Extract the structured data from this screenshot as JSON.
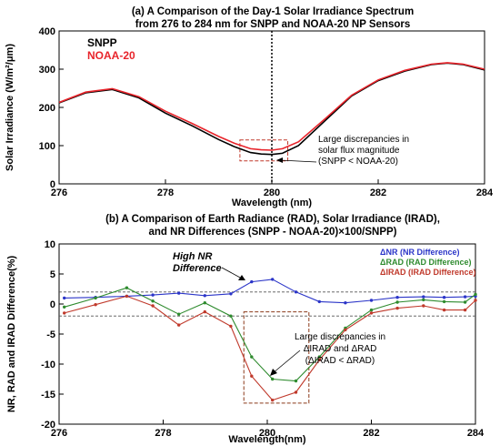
{
  "chart_data": [
    {
      "type": "line",
      "title_line1": "(a) A Comparison of the Day-1 Solar Irradiance Spectrum",
      "title_line2": "from 276 to 284 nm for SNPP and NOAA-20 NP Sensors",
      "xlabel": "Wavelength (nm)",
      "ylabel": "Solar Irradiance (W/m²/μm)",
      "xlim": [
        276,
        284
      ],
      "ylim": [
        0,
        400
      ],
      "xticks": [
        276,
        278,
        280,
        282,
        284
      ],
      "yticks": [
        0,
        100,
        200,
        300,
        400
      ],
      "legend_position": "top-left",
      "reference_line_x": 280,
      "annotation": {
        "lines": [
          "Large discrepancies in",
          "solar flux magnitude",
          "(SNPP < NOAA-20)"
        ],
        "box": {
          "x": [
            279.4,
            280.3
          ],
          "y": [
            60,
            115
          ]
        }
      },
      "series": [
        {
          "name": "SNPP",
          "color": "#000000",
          "x": [
            276,
            276.5,
            277,
            277.5,
            278,
            278.5,
            279,
            279.3,
            279.6,
            279.8,
            280,
            280.2,
            280.5,
            281,
            281.5,
            282,
            282.5,
            283,
            283.3,
            283.6,
            284
          ],
          "y": [
            212,
            238,
            247,
            225,
            185,
            152,
            116,
            97,
            82,
            78,
            77,
            80,
            100,
            165,
            230,
            270,
            295,
            312,
            316,
            312,
            298
          ]
        },
        {
          "name": "NOAA-20",
          "color": "#e8242b",
          "x": [
            276,
            276.5,
            277,
            277.5,
            278,
            278.5,
            279,
            279.3,
            279.6,
            279.8,
            280,
            280.2,
            280.5,
            281,
            281.5,
            282,
            282.5,
            283,
            283.3,
            283.6,
            284
          ],
          "y": [
            213,
            240,
            249,
            228,
            190,
            158,
            124,
            106,
            92,
            89,
            88,
            92,
            110,
            170,
            232,
            272,
            297,
            313,
            317,
            313,
            300
          ]
        }
      ]
    },
    {
      "type": "line",
      "title_line1": "(b) A Comparison of Earth Radiance (RAD), Solar Irradiance (IRAD),",
      "title_line2": "and NR Differences (SNPP - NOAA-20)×100/SNPP)",
      "xlabel": "Wavelength(nm)",
      "ylabel": "NR, RAD and IRAD Difference(%)",
      "xlim": [
        276,
        284
      ],
      "ylim": [
        -20,
        10
      ],
      "xticks": [
        276,
        278,
        280,
        282,
        284
      ],
      "yticks": [
        -20,
        -15,
        -10,
        -5,
        0,
        5,
        10
      ],
      "reference_lines_y": [
        2,
        -2
      ],
      "legend_position": "top-right",
      "annotations": [
        {
          "lines": [
            "High NR",
            "Difference"
          ]
        },
        {
          "lines": [
            "Large discrepancies in",
            "ΔIRAD and ΔRAD",
            "(ΔIRAD < ΔRAD)"
          ],
          "box": {
            "x": [
              279.55,
              280.8
            ],
            "y": [
              -16.5,
              -1.3
            ]
          }
        }
      ],
      "x": [
        276.1,
        276.7,
        277.3,
        277.8,
        278.3,
        278.8,
        279.3,
        279.7,
        280.1,
        280.55,
        281.0,
        281.5,
        282.0,
        282.5,
        283.0,
        283.4,
        283.8,
        284.0
      ],
      "series": [
        {
          "name": "ΔNR (NR Difference)",
          "color": "#2b35c8",
          "values": [
            1.0,
            1.1,
            1.3,
            1.5,
            1.8,
            1.4,
            1.7,
            3.7,
            4.1,
            2.0,
            0.4,
            0.2,
            0.6,
            1.1,
            1.2,
            1.1,
            1.2,
            1.3
          ]
        },
        {
          "name": "ΔRAD (RAD Difference)",
          "color": "#2e8b2e",
          "values": [
            -0.5,
            1.0,
            2.7,
            0.5,
            -1.7,
            0.2,
            -2.0,
            -8.8,
            -12.5,
            -12.8,
            -8.8,
            -4.0,
            -1.0,
            0.3,
            0.7,
            0.4,
            0.3,
            1.6
          ]
        },
        {
          "name": "ΔIRAD (IRAD Difference)",
          "color": "#c0392b",
          "values": [
            -1.5,
            -0.1,
            1.3,
            -0.3,
            -3.5,
            -1.3,
            -3.7,
            -12.0,
            -16.0,
            -14.7,
            -9.3,
            -4.3,
            -1.5,
            -0.7,
            -0.3,
            -1.0,
            -1.0,
            0.6
          ]
        }
      ]
    }
  ]
}
